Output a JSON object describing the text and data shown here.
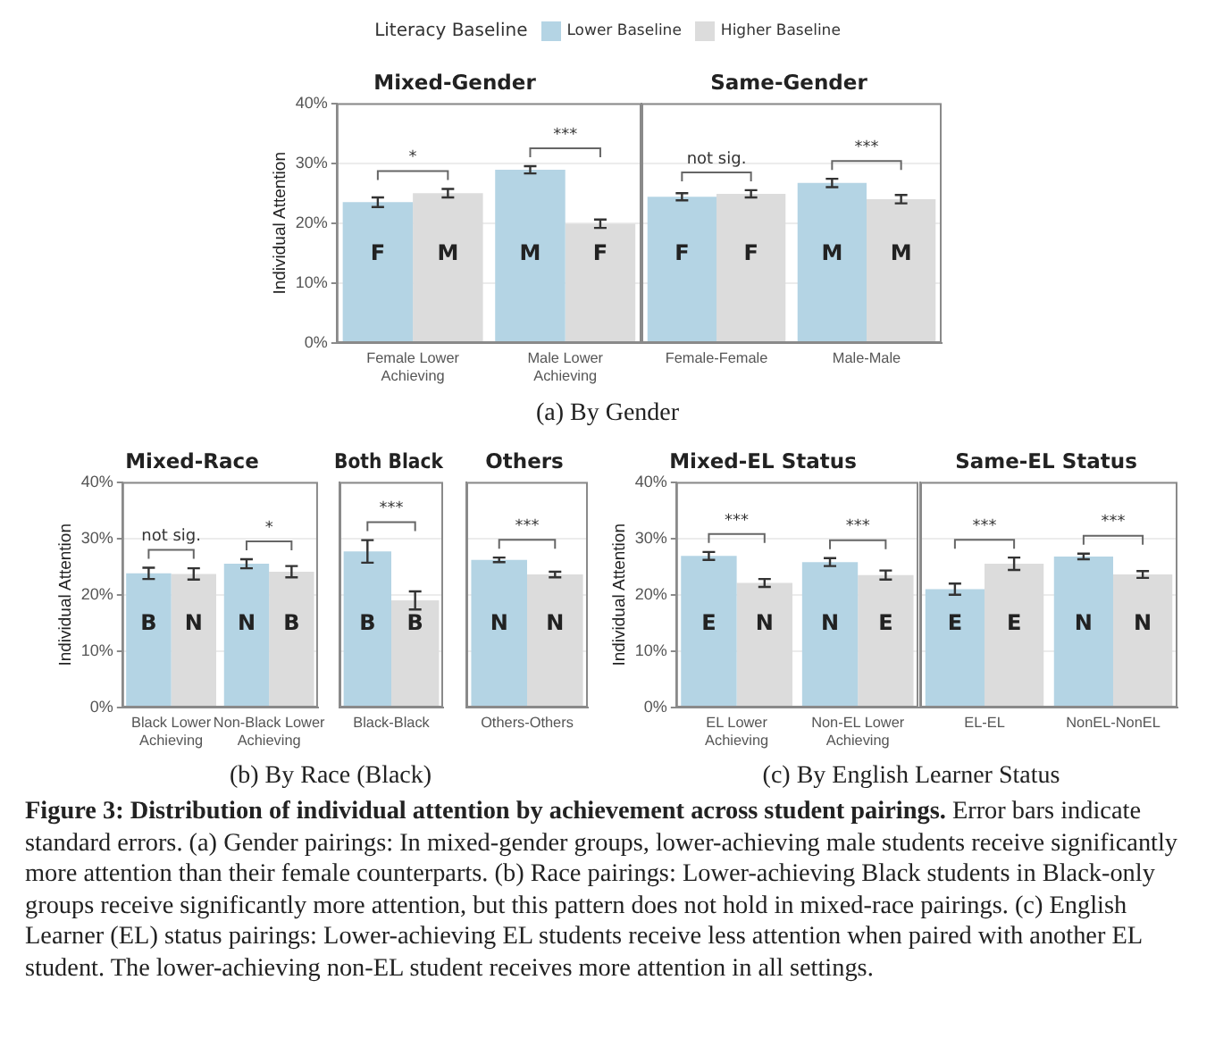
{
  "chart_data": [
    {
      "type": "bar",
      "title": "Mixed-Gender",
      "ylabel": "Individual Attention",
      "legend_title": "Literacy Baseline",
      "legend": "top",
      "grid": "y",
      "categories": [
        "Female Lower Achieving",
        "Male Lower Achieving"
      ],
      "series": [
        {
          "name": "Lower Baseline",
          "color": "#b4d4e4",
          "values": [
            23.5,
            28.9
          ],
          "errors": [
            0.8,
            0.6
          ],
          "value_labels": [
            "F",
            "M"
          ]
        },
        {
          "name": "Higher Baseline",
          "color": "#dcdcdc",
          "values": [
            25.0,
            19.9
          ],
          "errors": [
            0.7,
            0.7
          ],
          "value_labels": [
            "M",
            "F"
          ]
        }
      ],
      "ylim": [
        0,
        40
      ],
      "yticks": [
        {
          "value": 0,
          "label": "0%"
        },
        {
          "value": 10,
          "label": "10%"
        },
        {
          "value": 20,
          "label": "20%"
        },
        {
          "value": 30,
          "label": "30%"
        },
        {
          "value": 40,
          "label": "40%"
        }
      ],
      "annotations": [
        "*",
        "***",
        "(a) By Gender"
      ]
    },
    {
      "type": "bar",
      "title": "Same-Gender",
      "grid": "y",
      "tick_labels": "x",
      "categories": [
        "Female-Female",
        "Male-Male"
      ],
      "series": [
        {
          "color": "#b4d4e4",
          "values": [
            24.4,
            26.7
          ],
          "errors": [
            0.6,
            0.7
          ],
          "value_labels": [
            "F",
            "M"
          ]
        },
        {
          "color": "#dcdcdc",
          "values": [
            24.9,
            24.0
          ],
          "errors": [
            0.6,
            0.7
          ],
          "value_labels": [
            "F",
            "M"
          ]
        }
      ],
      "ylim": [
        0,
        40
      ],
      "yticks": [
        {
          "value": 0,
          "label": null
        },
        {
          "value": 10,
          "label": null
        },
        {
          "value": 20,
          "label": null
        },
        {
          "value": 30,
          "label": null
        },
        {
          "value": 40,
          "label": null
        }
      ],
      "annotations": [
        "not sig.",
        "***"
      ]
    },
    {
      "type": "bar",
      "title": "Mixed-Race",
      "ylabel": "Individual Attention",
      "grid": "y",
      "categories": [
        "Black Lower Achieving",
        "Non-Black Lower Achieving"
      ],
      "series": [
        {
          "color": "#b4d4e4",
          "values": [
            23.8,
            25.5
          ],
          "errors": [
            1.0,
            0.8
          ],
          "value_labels": [
            "B",
            "N"
          ]
        },
        {
          "color": "#dcdcdc",
          "values": [
            23.7,
            24.1
          ],
          "errors": [
            1.0,
            1.0
          ],
          "value_labels": [
            "N",
            "B"
          ]
        }
      ],
      "ylim": [
        0,
        40
      ],
      "yticks": [
        {
          "value": 0,
          "label": "0%"
        },
        {
          "value": 10,
          "label": "10%"
        },
        {
          "value": 20,
          "label": "20%"
        },
        {
          "value": 30,
          "label": "30%"
        },
        {
          "value": 40,
          "label": "40%"
        }
      ],
      "annotations": [
        "not sig.",
        "*"
      ]
    },
    {
      "type": "bar",
      "title": "Both Black",
      "grid": "y",
      "tick_labels": "x",
      "categories": [
        "Black-Black"
      ],
      "series": [
        {
          "color": "#b4d4e4",
          "values": [
            27.7
          ],
          "errors": [
            2.0
          ],
          "value_labels": [
            "B"
          ]
        },
        {
          "color": "#dcdcdc",
          "values": [
            19.0
          ],
          "errors": [
            1.6
          ],
          "value_labels": [
            "B"
          ]
        }
      ],
      "ylim": [
        0,
        40
      ],
      "yticks": [
        {
          "value": 0,
          "label": null
        },
        {
          "value": 10,
          "label": null
        },
        {
          "value": 20,
          "label": null
        },
        {
          "value": 30,
          "label": null
        },
        {
          "value": 40,
          "label": null
        }
      ],
      "annotations": [
        "***"
      ]
    },
    {
      "type": "bar",
      "title": "Others",
      "grid": "y",
      "tick_labels": "x",
      "categories": [
        "Others-Others"
      ],
      "series": [
        {
          "color": "#b4d4e4",
          "values": [
            26.2
          ],
          "errors": [
            0.4
          ],
          "value_labels": [
            "N"
          ]
        },
        {
          "color": "#dcdcdc",
          "values": [
            23.6
          ],
          "errors": [
            0.5
          ],
          "value_labels": [
            "N"
          ]
        }
      ],
      "ylim": [
        0,
        40
      ],
      "yticks": [
        {
          "value": 0,
          "label": null
        },
        {
          "value": 10,
          "label": null
        },
        {
          "value": 20,
          "label": null
        },
        {
          "value": 30,
          "label": null
        },
        {
          "value": 40,
          "label": null
        }
      ],
      "annotations": [
        "***",
        "(b) By Race (Black)"
      ]
    },
    {
      "type": "bar",
      "title": "Mixed-EL Status",
      "ylabel": "Individual Attention",
      "grid": "y",
      "categories": [
        "EL Lower Achieving",
        "Non-EL Lower Achieving"
      ],
      "series": [
        {
          "color": "#b4d4e4",
          "values": [
            26.9,
            25.8
          ],
          "errors": [
            0.7,
            0.7
          ],
          "value_labels": [
            "E",
            "N"
          ]
        },
        {
          "color": "#dcdcdc",
          "values": [
            22.1,
            23.5
          ],
          "errors": [
            0.7,
            0.8
          ],
          "value_labels": [
            "N",
            "E"
          ]
        }
      ],
      "ylim": [
        0,
        40
      ],
      "yticks": [
        {
          "value": 0,
          "label": "0%"
        },
        {
          "value": 10,
          "label": "10%"
        },
        {
          "value": 20,
          "label": "20%"
        },
        {
          "value": 30,
          "label": "30%"
        },
        {
          "value": 40,
          "label": "40%"
        }
      ],
      "annotations": [
        "***",
        "***"
      ]
    },
    {
      "type": "bar",
      "title": "Same-EL Status",
      "grid": "y",
      "tick_labels": "x",
      "categories": [
        "EL-EL",
        "NonEL-NonEL"
      ],
      "series": [
        {
          "color": "#b4d4e4",
          "values": [
            21.0,
            26.8
          ],
          "errors": [
            1.0,
            0.5
          ],
          "value_labels": [
            "E",
            "N"
          ]
        },
        {
          "color": "#dcdcdc",
          "values": [
            25.5,
            23.6
          ],
          "errors": [
            1.1,
            0.6
          ],
          "value_labels": [
            "E",
            "N"
          ]
        }
      ],
      "ylim": [
        0,
        40
      ],
      "yticks": [
        {
          "value": 0,
          "label": null
        },
        {
          "value": 10,
          "label": null
        },
        {
          "value": 20,
          "label": null
        },
        {
          "value": 30,
          "label": null
        },
        {
          "value": 40,
          "label": null
        }
      ],
      "annotations": [
        "***",
        "***",
        "(c) By English Learner Status",
        "Figure 3: Distribution of individual attention by achievement across student pairings.",
        "Error bars indicate standard errors. (a) Gender pairings: In mixed-gender groups, lower-achieving male students receive significantly more attention than their female counterparts. (b) Race pairings: Lower-achieving Black students in Black-only groups receive significantly more attention, but this pattern does not hold in mixed-race pairings. (c) English Learner (EL) status pairings: Lower-achieving EL students receive less attention when paired with another EL student. The lower-achieving non-EL student receives more attention in all settings."
      ]
    }
  ]
}
